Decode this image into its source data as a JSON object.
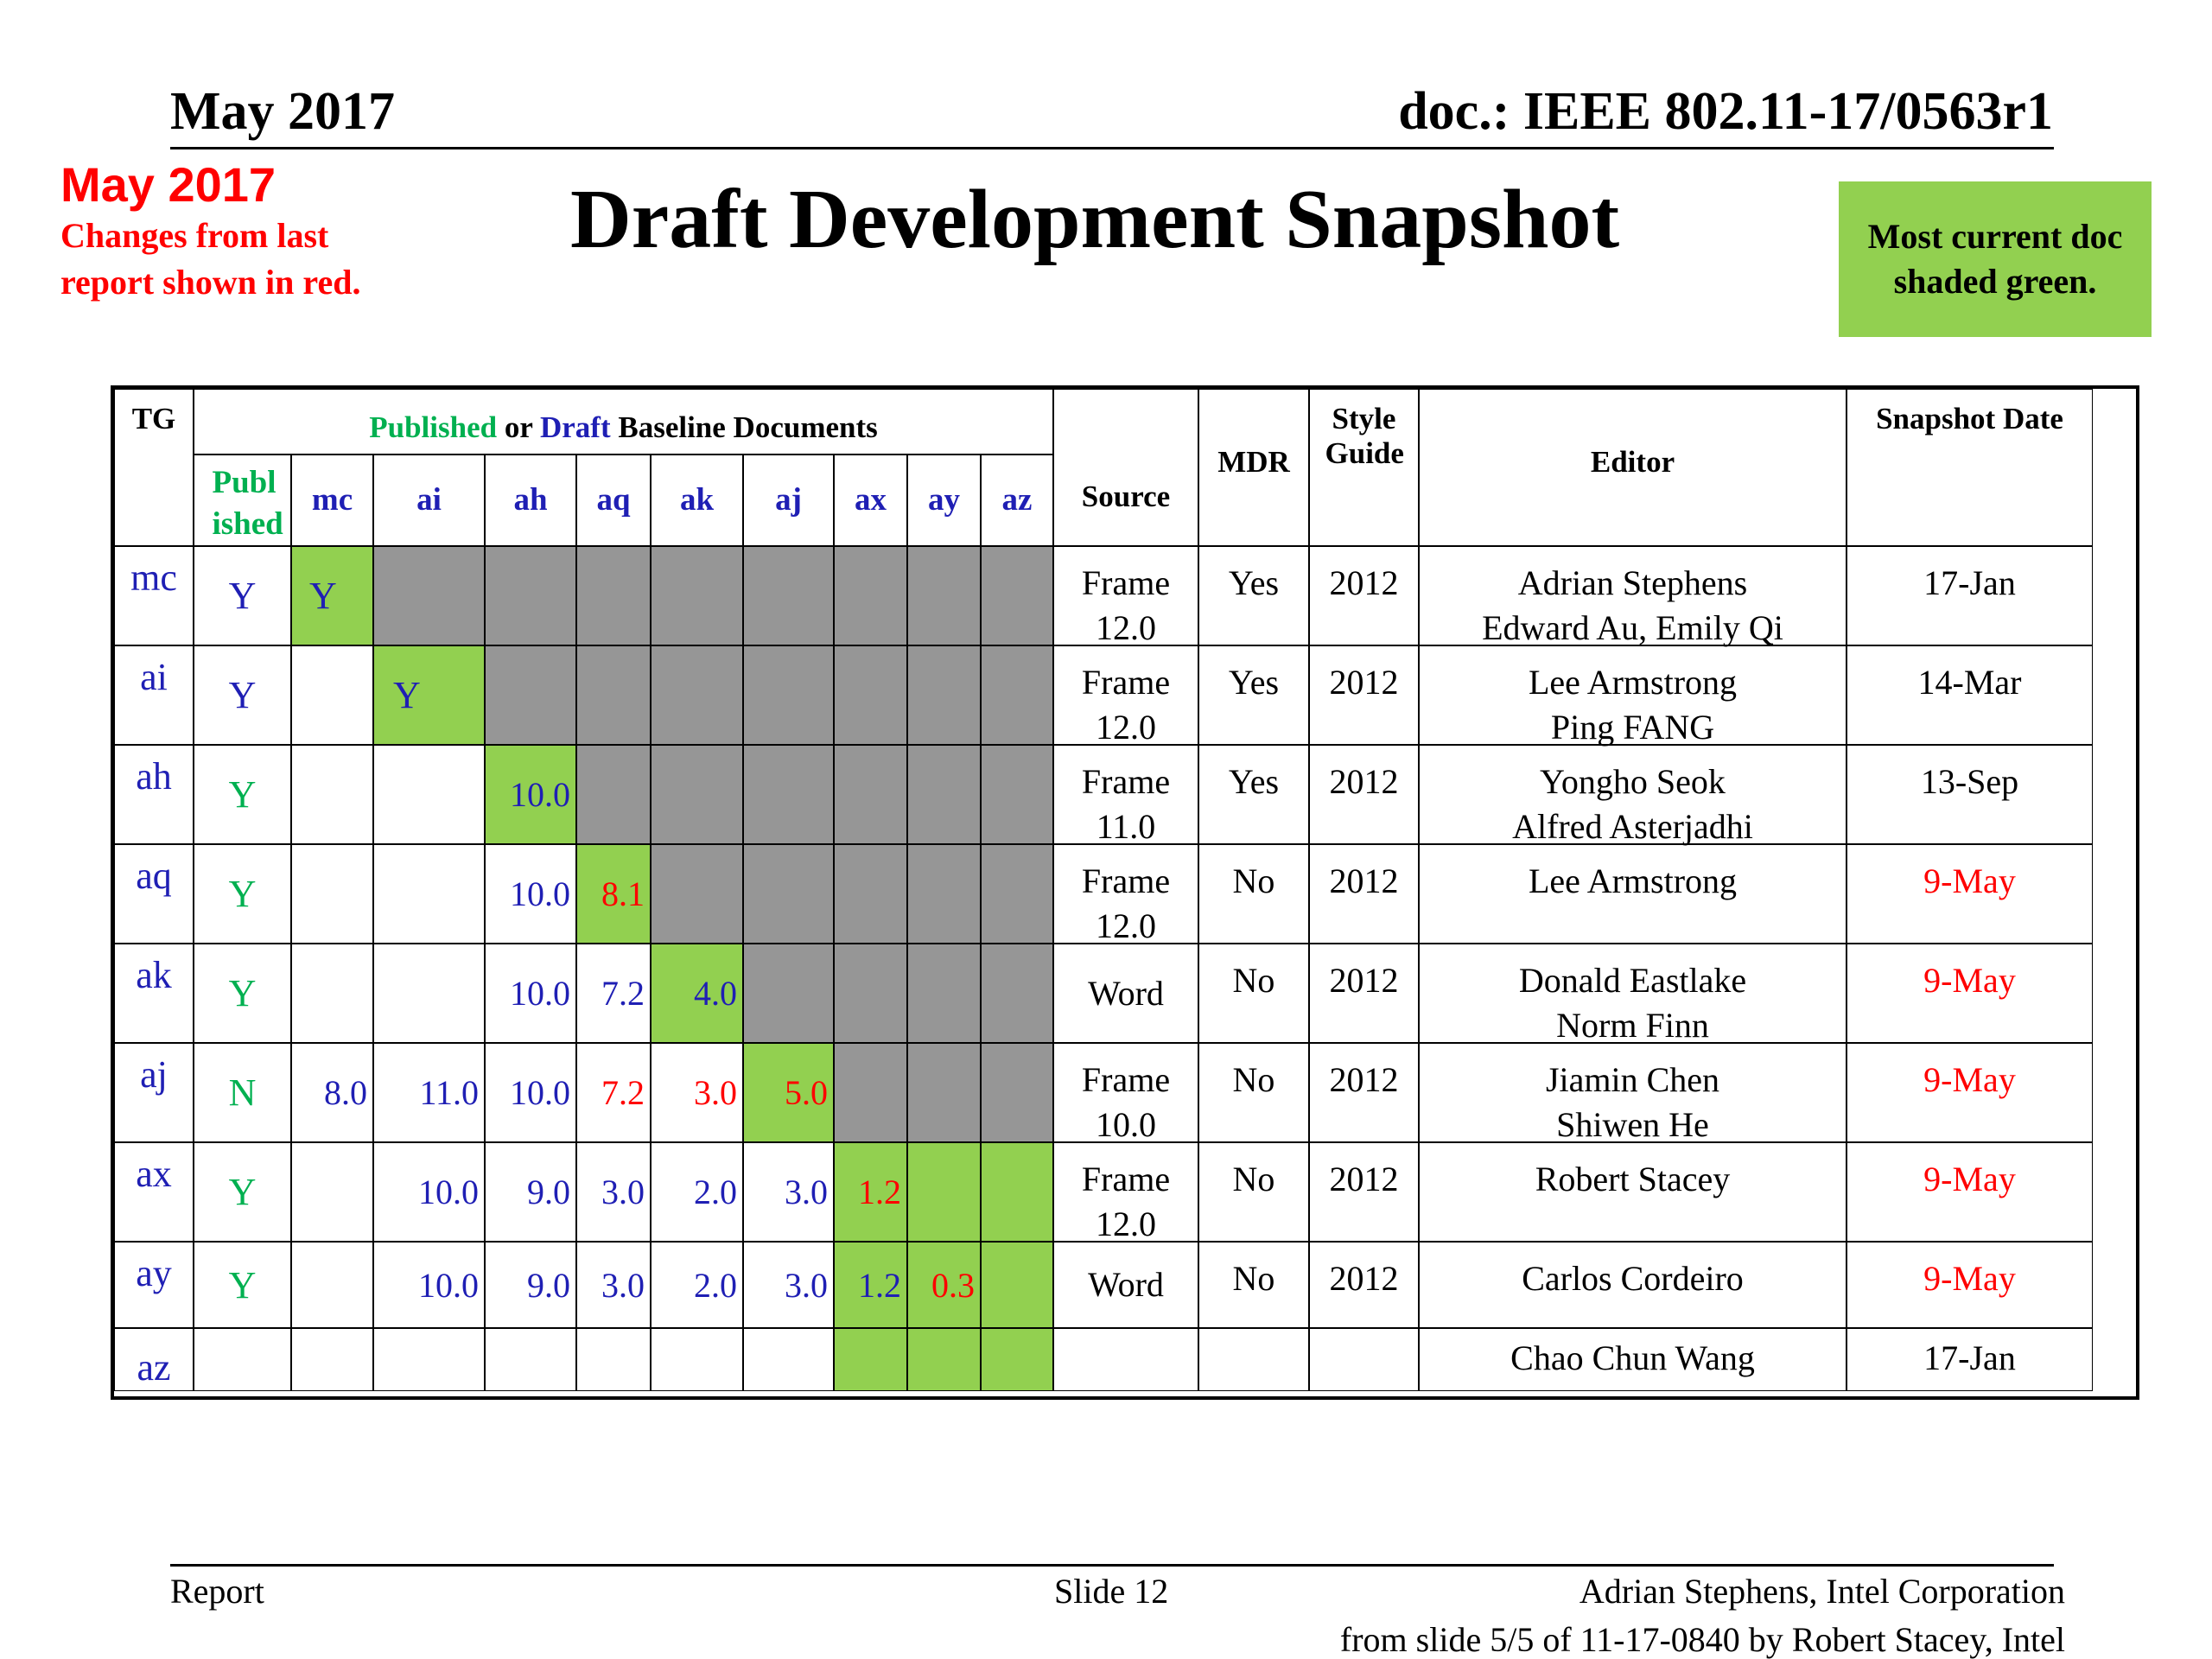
{
  "header": {
    "left": "May 2017",
    "right": "doc.: IEEE 802.11-17/0563r1"
  },
  "note": {
    "date": "May 2017",
    "text": "Changes from  last report shown in red."
  },
  "title": "Draft Development Snapshot",
  "green_note": "Most current doc shaded green.",
  "table": {
    "headers": {
      "tg": "TG",
      "baseline_published": "Published",
      "baseline_or": " or ",
      "baseline_draft": "Draft",
      "baseline_rest": " Baseline Documents",
      "published": "Publ ished",
      "cols": [
        "mc",
        "ai",
        "ah",
        "aq",
        "ak",
        "aj",
        "ax",
        "ay",
        "az"
      ],
      "source": "Source",
      "mdr": "MDR",
      "style_guide": "Style Guide",
      "editor": "Editor",
      "snapshot_date": "Snapshot Date"
    },
    "rows": [
      {
        "tg": "mc",
        "published": "Y",
        "cells": [
          "Y",
          "",
          "",
          "",
          "",
          "",
          "",
          "",
          ""
        ],
        "source": "Frame 12.0",
        "mdr": "Yes",
        "style": "2012",
        "editor": "Adrian Stephens\nEdward Au, Emily Qi",
        "date": "17-Jan"
      },
      {
        "tg": "ai",
        "published": "Y",
        "cells": [
          "",
          "Y",
          "",
          "",
          "",
          "",
          "",
          "",
          ""
        ],
        "source": "Frame 12.0",
        "mdr": "Yes",
        "style": "2012",
        "editor": "Lee Armstrong\nPing FANG",
        "date": "14-Mar"
      },
      {
        "tg": "ah",
        "published": "Y",
        "cells": [
          "",
          "",
          "10.0",
          "",
          "",
          "",
          "",
          "",
          ""
        ],
        "source": "Frame 11.0",
        "mdr": "Yes",
        "style": "2012",
        "editor": "Yongho Seok\nAlfred Asterjadhi",
        "date": "13-Sep"
      },
      {
        "tg": "aq",
        "published": "Y",
        "cells": [
          "",
          "",
          "10.0",
          "8.1",
          "",
          "",
          "",
          "",
          ""
        ],
        "source": "Frame 12.0",
        "mdr": "No",
        "style": "2012",
        "editor": "Lee Armstrong",
        "date": "9-May"
      },
      {
        "tg": "ak",
        "published": "Y",
        "cells": [
          "",
          "",
          "10.0",
          "7.2",
          "4.0",
          "",
          "",
          "",
          ""
        ],
        "source": "Word",
        "mdr": "No",
        "style": "2012",
        "editor": "Donald Eastlake\nNorm Finn",
        "date": "9-May"
      },
      {
        "tg": "aj",
        "published": "N",
        "cells": [
          "8.0",
          "11.0",
          "10.0",
          "7.2",
          "3.0",
          "5.0",
          "",
          "",
          ""
        ],
        "source": "Frame 10.0",
        "mdr": "No",
        "style": "2012",
        "editor": "Jiamin Chen\nShiwen He",
        "date": "9-May"
      },
      {
        "tg": "ax",
        "published": "Y",
        "cells": [
          "",
          "10.0",
          "9.0",
          "3.0",
          "2.0",
          "3.0",
          "1.2",
          "",
          ""
        ],
        "source": "Frame 12.0",
        "mdr": "No",
        "style": "2012",
        "editor": "Robert Stacey",
        "date": "9-May"
      },
      {
        "tg": "ay",
        "published": "Y",
        "cells": [
          "",
          "10.0",
          "9.0",
          "3.0",
          "2.0",
          "3.0",
          "1.2",
          "0.3",
          ""
        ],
        "source": "Word",
        "mdr": "No",
        "style": "2012",
        "editor": "Carlos Cordeiro",
        "date": "9-May"
      },
      {
        "tg": "az",
        "published": "",
        "cells": [
          "",
          "",
          "",
          "",
          "",
          "",
          "",
          "",
          ""
        ],
        "source": "",
        "mdr": "",
        "style": "",
        "editor": "Chao Chun Wang",
        "date": "17-Jan"
      }
    ],
    "colors": {
      "current_green": "#92d050",
      "na_gray": "#969696",
      "published": "#00b050",
      "draft": "#1f1fb4",
      "changed": "#ff0000"
    }
  },
  "footer": {
    "left": "Report",
    "center": "Slide 12",
    "right": "Adrian Stephens, Intel Corporation",
    "source": "from slide 5/5 of 11-17-0840 by Robert Stacey, Intel"
  }
}
